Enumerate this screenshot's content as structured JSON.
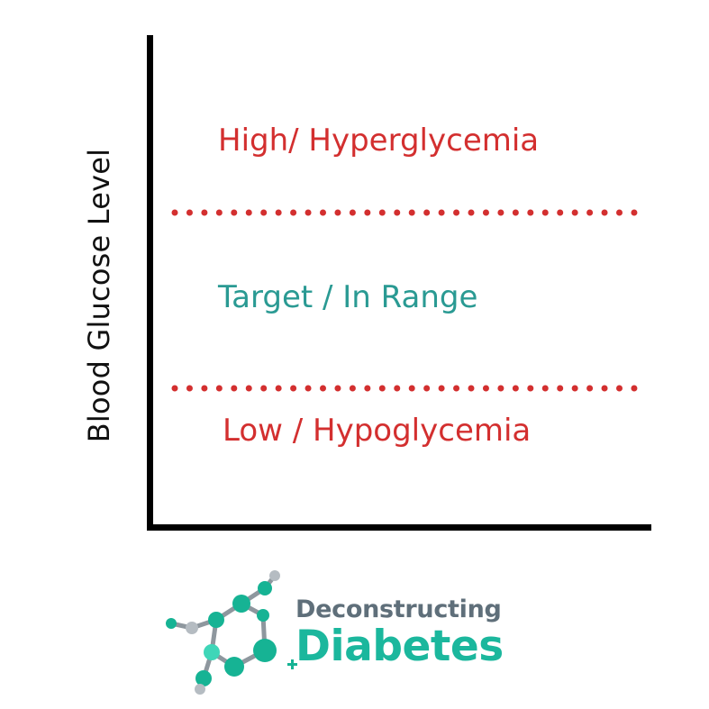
{
  "diagram": {
    "y_axis_label": "Blood Glucose Level",
    "zones": {
      "high": "High/ Hyperglycemia",
      "target": "Target / In Range",
      "low": "Low / Hypoglycemia"
    },
    "colors": {
      "high": "#d32f2f",
      "target": "#2a9a93",
      "low": "#d32f2f",
      "threshold": "#d32f2f",
      "axis": "#000000"
    }
  },
  "logo": {
    "line1": "Deconstructing",
    "line2": "Diabetes",
    "colors": {
      "text_gray": "#5f6f7a",
      "text_teal": "#1bb79d",
      "molecule_teal": "#16b394",
      "molecule_light": "#3fd6b8",
      "molecule_gray": "#b5bcc2"
    }
  }
}
